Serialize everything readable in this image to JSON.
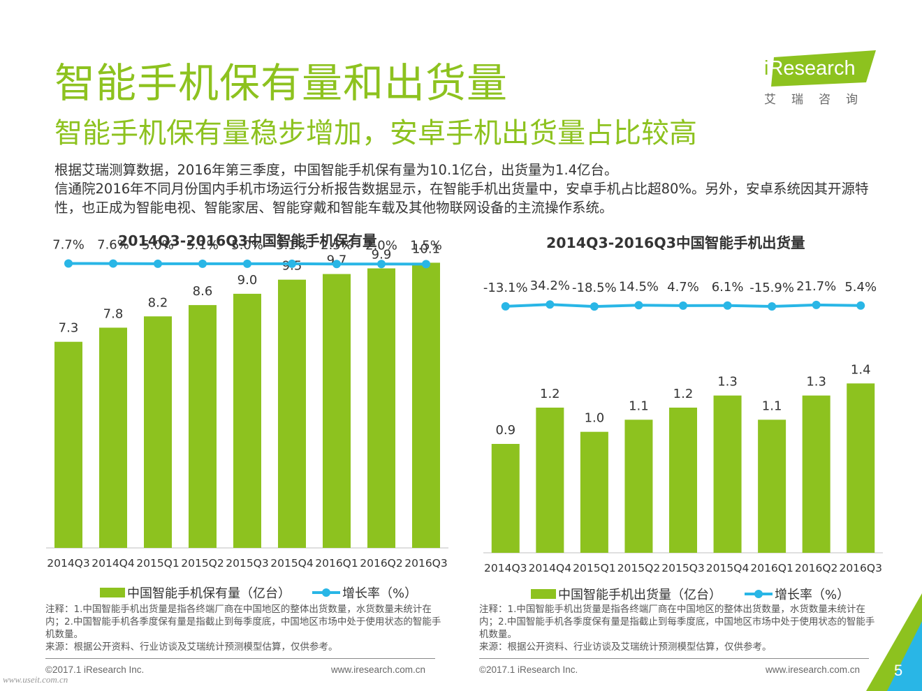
{
  "page": {
    "title": "智能手机保有量和出货量",
    "subtitle": "智能手机保有量稳步增加，安卓手机出货量占比较高",
    "desc_line1": "根据艾瑞测算数据，2016年第三季度，中国智能手机保有量为10.1亿台，出货量为1.4亿台。",
    "desc_line2": "信通院2016年不同月份国内手机市场运行分析报告数据显示，在智能手机出货量中，安卓手机占比超80%。另外，安卓系统因其开源特性，也正成为智能电视、智能家居、智能穿戴和智能车载及其他物联网设备的主流操作系统。"
  },
  "logo": {
    "brand_i": "i",
    "brand_rest": "Research",
    "cn": "艾瑞咨询"
  },
  "colors": {
    "bar": "#8dc21f",
    "line": "#29b6e6",
    "title": "#8dc21f"
  },
  "chart_data": [
    {
      "type": "bar",
      "title": "2014Q3-2016Q3中国智能手机保有量",
      "categories": [
        "2014Q3",
        "2014Q4",
        "2015Q1",
        "2015Q2",
        "2015Q3",
        "2015Q4",
        "2016Q1",
        "2016Q2",
        "2016Q3"
      ],
      "series": [
        {
          "name": "中国智能手机保有量（亿台）",
          "type": "bar",
          "values": [
            7.3,
            7.8,
            8.2,
            8.6,
            9.0,
            9.5,
            9.7,
            9.9,
            10.1
          ]
        },
        {
          "name": "增长率（%）",
          "type": "line",
          "values": [
            7.7,
            7.6,
            5.0,
            5.1,
            5.0,
            5.1,
            2.5,
            2.0,
            1.5
          ]
        }
      ],
      "value_labels": [
        "7.3",
        "7.8",
        "8.2",
        "8.6",
        "9.0",
        "9.5",
        "9.7",
        "9.9",
        "10.1"
      ],
      "rate_labels": [
        "7.7%",
        "7.6%",
        "5.0%",
        "5.1%",
        "5.0%",
        "5.1%",
        "2.5%",
        "2.0%",
        "1.5%"
      ],
      "legend": {
        "bar": "中国智能手机保有量（亿台）",
        "line": "增长率（%）"
      },
      "note_line1": "注释：1.中国智能手机出货量是指各终端厂商在中国地区的整体出货数量，水货数量未统计在内；2.中国智能手机各季度保有量是指截止到每季度底，中国地区市场中处于使用状态的智能手机数量。",
      "source": "来源：根据公开资料、行业访谈及艾瑞统计预测模型估算，仅供参考。",
      "ylim": [
        0,
        11
      ],
      "rate_ylim": [
        -300,
        12
      ]
    },
    {
      "type": "bar",
      "title": "2014Q3-2016Q3中国智能手机出货量",
      "categories": [
        "2014Q3",
        "2014Q4",
        "2015Q1",
        "2015Q2",
        "2015Q3",
        "2015Q4",
        "2016Q1",
        "2016Q2",
        "2016Q3"
      ],
      "series": [
        {
          "name": "中国智能手机出货量（亿台）",
          "type": "bar",
          "values": [
            0.9,
            1.2,
            1.0,
            1.1,
            1.2,
            1.3,
            1.1,
            1.3,
            1.4
          ]
        },
        {
          "name": "增长率（%）",
          "type": "line",
          "values": [
            -13.1,
            34.2,
            -18.5,
            14.5,
            4.7,
            6.1,
            -15.9,
            21.7,
            5.4
          ]
        }
      ],
      "value_labels": [
        "0.9",
        "1.2",
        "1.0",
        "1.1",
        "1.2",
        "1.3",
        "1.1",
        "1.3",
        "1.4"
      ],
      "rate_labels": [
        "-13.1%",
        "34.2%",
        "-18.5%",
        "14.5%",
        "4.7%",
        "6.1%",
        "-15.9%",
        "21.7%",
        "5.4%"
      ],
      "legend": {
        "bar": "中国智能手机出货量（亿台）",
        "line": "增长率（%）"
      },
      "note_line1": "注释：1.中国智能手机出货量是指各终端厂商在中国地区的整体出货数量，水货数量未统计在内；2.中国智能手机各季度保有量是指截止到每季度底，中国地区市场中处于使用状态的智能手机数量。",
      "source": "来源：根据公开资料、行业访谈及艾瑞统计预测模型估算，仅供参考。",
      "ylim": [
        0,
        1.8
      ],
      "rate_ylim": [
        -250,
        38
      ]
    }
  ],
  "footer": {
    "left_copyright": "©2017.1 iResearch Inc.",
    "left_url": "www.iresearch.com.cn",
    "right_copyright": "©2017.1 iResearch Inc.",
    "right_url": "www.iresearch.com.cn",
    "page_number": "5",
    "watermark": "www.useit.com.cn"
  }
}
